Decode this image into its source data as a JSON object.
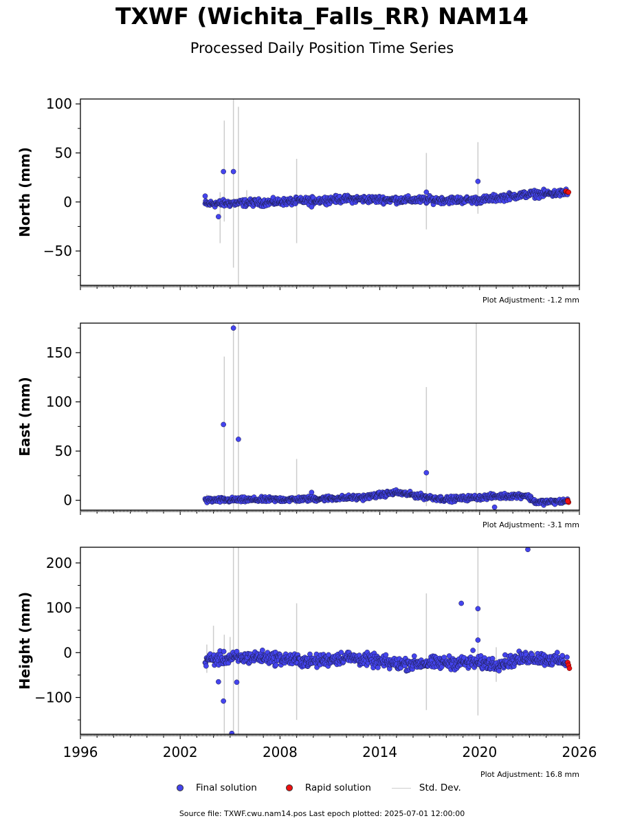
{
  "title": "TXWF (Wichita_Falls_RR) NAM14",
  "subtitle": "Processed Daily Position Time Series",
  "legend": {
    "final": "Final solution",
    "rapid": "Rapid solution",
    "std": "Std. Dev."
  },
  "colors": {
    "final": "#4444ee",
    "rapid": "#ee1111",
    "std": "#cccccc"
  },
  "source": "Source file: TXWF.cwu.nam14.pos  Last epoch plotted: 2025-07-01 12:00:00",
  "chart_data": [
    {
      "type": "scatter",
      "ylabel": "North (mm)",
      "adjustment": "Plot Adjustment: -1.2 mm",
      "xlim": [
        1996,
        2026
      ],
      "ylim": [
        -85,
        105
      ],
      "yticks": [
        -50,
        0,
        50,
        100
      ],
      "yticklabels": [
        "−50",
        "0",
        "50",
        "100"
      ],
      "trend": [
        [
          2003.5,
          -2
        ],
        [
          2008,
          0
        ],
        [
          2012,
          3
        ],
        [
          2016,
          2
        ],
        [
          2020,
          2
        ],
        [
          2023,
          8
        ],
        [
          2025.3,
          9
        ]
      ],
      "noise": 2.5,
      "outliers": [
        [
          2003.5,
          6
        ],
        [
          2004.3,
          -15
        ],
        [
          2004.6,
          31
        ],
        [
          2005.2,
          31
        ],
        [
          2009.9,
          -5
        ],
        [
          2016.8,
          10
        ],
        [
          2019.9,
          21
        ],
        [
          2025.2,
          13
        ]
      ],
      "rapid": [
        [
          2025.2,
          11
        ],
        [
          2025.3,
          10
        ],
        [
          2025.35,
          10
        ]
      ],
      "errorbars": [
        [
          2003.6,
          -5,
          8
        ],
        [
          2004.4,
          -42,
          10
        ],
        [
          2004.65,
          -20,
          83
        ],
        [
          2005.2,
          -67,
          105
        ],
        [
          2005.5,
          -85,
          97
        ],
        [
          2006.0,
          -3,
          12
        ],
        [
          2009.0,
          -42,
          44
        ],
        [
          2016.8,
          -28,
          50
        ],
        [
          2019.9,
          -12,
          61
        ],
        [
          2024.4,
          3,
          12
        ]
      ]
    },
    {
      "type": "scatter",
      "ylabel": "East (mm)",
      "adjustment": "Plot Adjustment: -3.1 mm",
      "xlim": [
        1996,
        2026
      ],
      "ylim": [
        -10,
        180
      ],
      "yticks": [
        0,
        50,
        100,
        150
      ],
      "yticklabels": [
        "0",
        "50",
        "100",
        "150"
      ],
      "trend": [
        [
          2003.5,
          0
        ],
        [
          2009,
          1
        ],
        [
          2013,
          3
        ],
        [
          2015,
          8
        ],
        [
          2016.5,
          4
        ],
        [
          2018,
          1
        ],
        [
          2021,
          4
        ],
        [
          2022.8,
          5
        ],
        [
          2023.4,
          -2
        ],
        [
          2025.3,
          -1
        ]
      ],
      "noise": 1.8,
      "outliers": [
        [
          2004.6,
          77
        ],
        [
          2005.2,
          175
        ],
        [
          2005.5,
          62
        ],
        [
          2009.9,
          8
        ],
        [
          2016.8,
          28
        ],
        [
          2020.9,
          -7
        ]
      ],
      "rapid": [
        [
          2025.3,
          0
        ],
        [
          2025.35,
          -2
        ],
        [
          2025.3,
          -1
        ]
      ],
      "errorbars": [
        [
          2003.6,
          -4,
          6
        ],
        [
          2004.65,
          -5,
          146
        ],
        [
          2005.2,
          -10,
          180
        ],
        [
          2005.5,
          -10,
          180
        ],
        [
          2009.0,
          -5,
          42
        ],
        [
          2016.8,
          -6,
          115
        ],
        [
          2019.8,
          -10,
          180
        ]
      ]
    },
    {
      "type": "scatter",
      "ylabel": "Height (mm)",
      "adjustment": "Plot Adjustment: 16.8 mm",
      "xlim": [
        1996,
        2026
      ],
      "ylim": [
        -182,
        235
      ],
      "yticks": [
        -100,
        0,
        100,
        200
      ],
      "yticklabels": [
        "−100",
        "0",
        "100",
        "200"
      ],
      "xticks": [
        1996,
        2002,
        2008,
        2014,
        2020,
        2026
      ],
      "xticklabels": [
        "1996",
        "2002",
        "2008",
        "2014",
        "2020",
        "2026"
      ],
      "trend": [
        [
          2003.5,
          -15
        ],
        [
          2007,
          -10
        ],
        [
          2010,
          -20
        ],
        [
          2012,
          -10
        ],
        [
          2015,
          -25
        ],
        [
          2019,
          -22
        ],
        [
          2021,
          -25
        ],
        [
          2023,
          -10
        ],
        [
          2025.3,
          -20
        ]
      ],
      "noise": 10,
      "outliers": [
        [
          2004.3,
          -65
        ],
        [
          2004.6,
          -108
        ],
        [
          2005.1,
          -180
        ],
        [
          2005.4,
          -66
        ],
        [
          2018.9,
          110
        ],
        [
          2019.9,
          98
        ],
        [
          2019.9,
          28
        ],
        [
          2019.6,
          5
        ],
        [
          2022.9,
          230
        ]
      ],
      "rapid": [
        [
          2025.3,
          -22
        ],
        [
          2025.35,
          -28
        ],
        [
          2025.4,
          -35
        ]
      ],
      "errorbars": [
        [
          2003.6,
          -45,
          18
        ],
        [
          2004.0,
          -30,
          60
        ],
        [
          2004.65,
          -180,
          40
        ],
        [
          2005.0,
          -20,
          35
        ],
        [
          2005.2,
          -182,
          235
        ],
        [
          2005.5,
          -182,
          235
        ],
        [
          2009.0,
          -150,
          110
        ],
        [
          2016.8,
          -128,
          132
        ],
        [
          2019.9,
          -140,
          235
        ],
        [
          2021.0,
          -65,
          12
        ],
        [
          2023.3,
          -20,
          5
        ]
      ]
    }
  ]
}
